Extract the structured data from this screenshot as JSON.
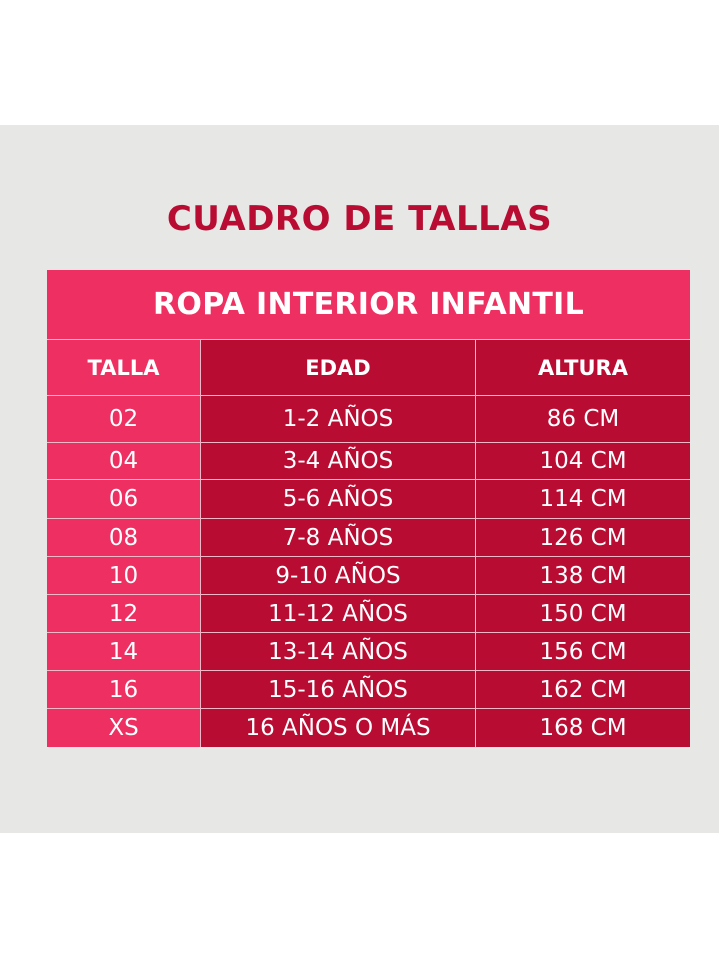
{
  "title": "CUADRO DE TALLAS",
  "table": {
    "subtitle": "ROPA INTERIOR INFANTIL",
    "headers": {
      "talla": "TALLA",
      "edad": "EDAD",
      "altura": "ALTURA"
    },
    "rows": [
      {
        "talla": "02",
        "edad": "1-2 AÑOS",
        "altura": "86 CM"
      },
      {
        "talla": "04",
        "edad": "3-4 AÑOS",
        "altura": "104 CM"
      },
      {
        "talla": "06",
        "edad": "5-6 AÑOS",
        "altura": "114 CM"
      },
      {
        "talla": "08",
        "edad": "7-8 AÑOS",
        "altura": "126 CM"
      },
      {
        "talla": "10",
        "edad": "9-10 AÑOS",
        "altura": "138 CM"
      },
      {
        "talla": "12",
        "edad": "11-12 AÑOS",
        "altura": "150 CM"
      },
      {
        "talla": "14",
        "edad": "13-14 AÑOS",
        "altura": "156 CM"
      },
      {
        "talla": "16",
        "edad": "15-16 AÑOS",
        "altura": "162 CM"
      },
      {
        "talla": "XS",
        "edad": "16 AÑOS O MÁS",
        "altura": "168 CM"
      }
    ]
  },
  "colors": {
    "title": "#b90c33",
    "pink": "#ee2f62",
    "crimson": "#b90c33",
    "panel": "#e7e8e6"
  }
}
